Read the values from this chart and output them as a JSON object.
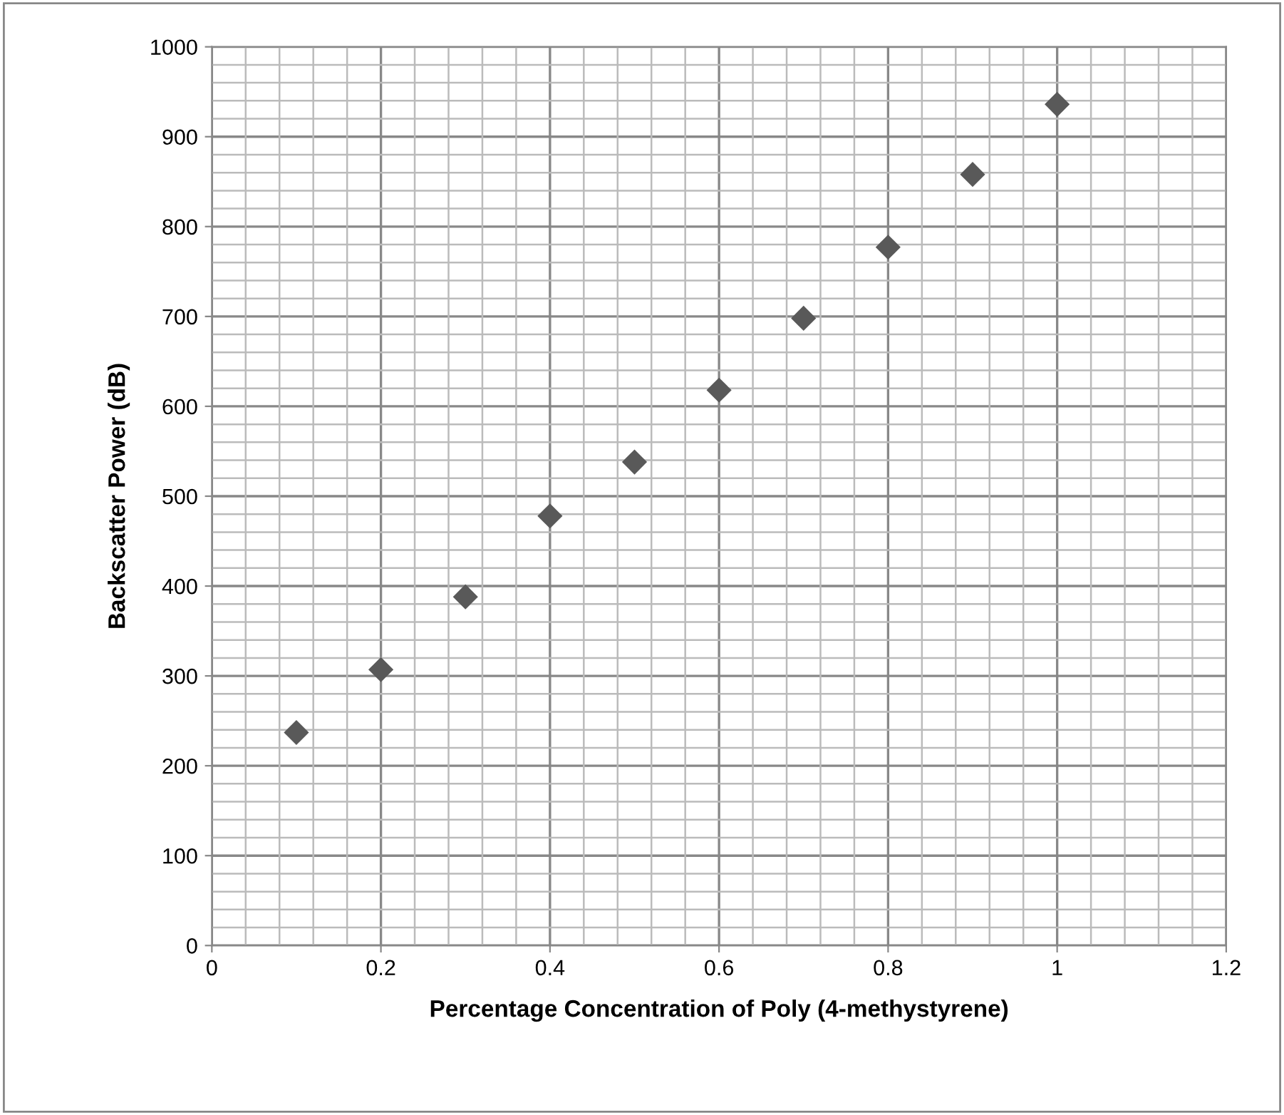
{
  "chart_data": {
    "type": "scatter",
    "xlabel": "Percentage Concentration of Poly (4-methystyrene)",
    "ylabel": "Backscatter Power (dB)",
    "x": [
      0.1,
      0.2,
      0.3,
      0.4,
      0.5,
      0.6,
      0.7,
      0.8,
      0.9,
      1.0
    ],
    "series": [
      {
        "color": "#595959",
        "values": [
          237,
          307,
          388,
          478,
          538,
          618,
          698,
          777,
          858,
          936
        ]
      }
    ],
    "xlim": [
      0,
      1.2
    ],
    "xticks": [
      0,
      0.2,
      0.4,
      0.6,
      0.8,
      1,
      1.2
    ],
    "ylim": [
      0,
      1000
    ],
    "yticks": [
      0,
      100,
      200,
      300,
      400,
      500,
      600,
      700,
      800,
      900,
      1000
    ],
    "grid": true,
    "marker": "diamond",
    "legend": false
  }
}
